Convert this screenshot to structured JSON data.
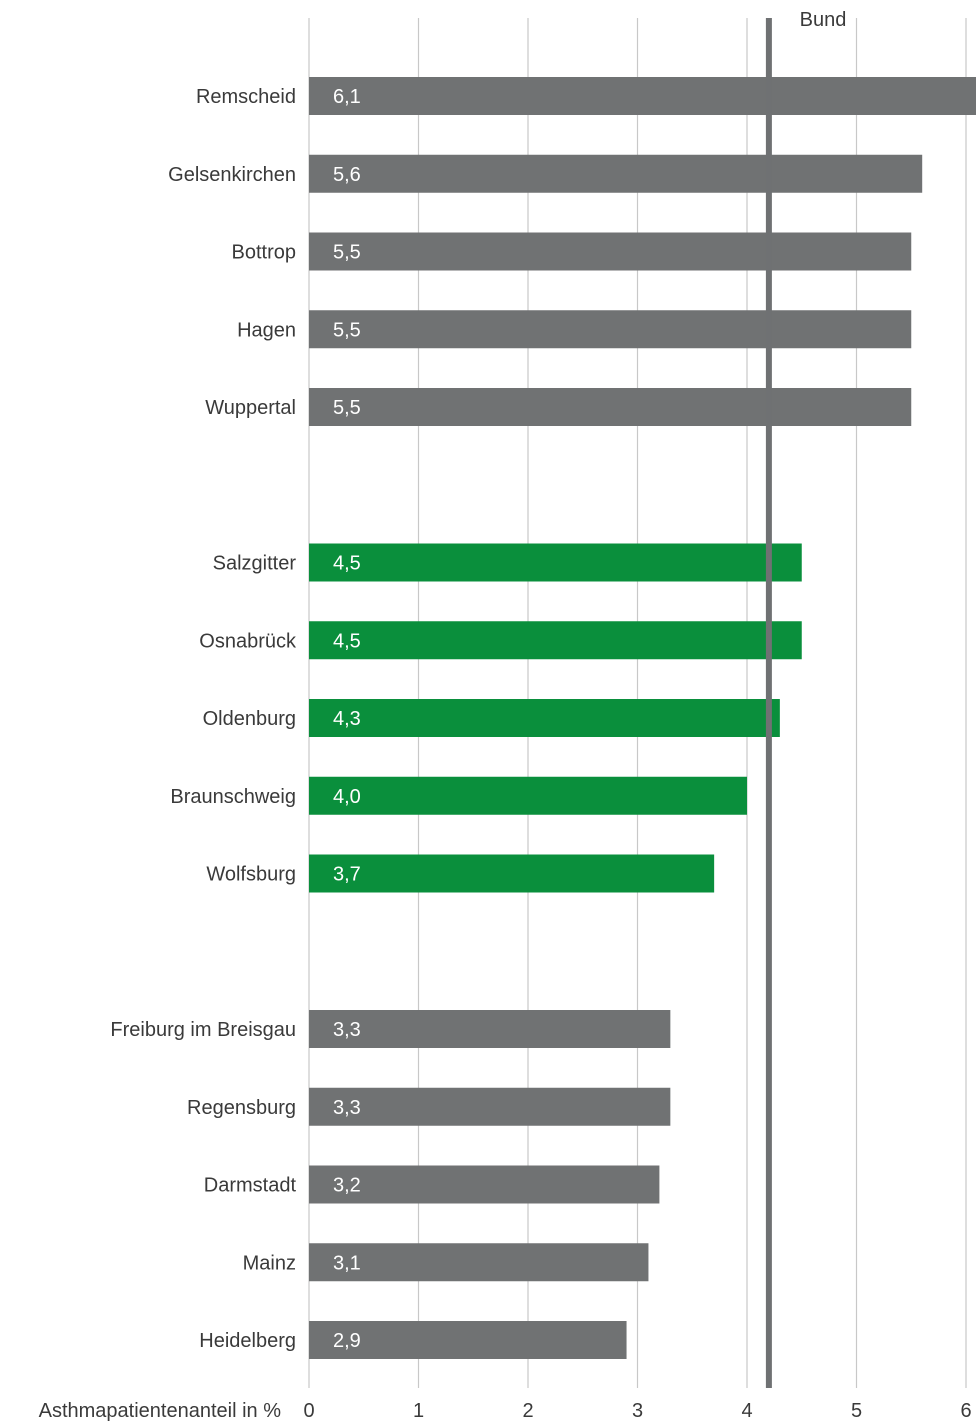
{
  "chart_data": {
    "type": "bar",
    "orientation": "horizontal",
    "xlabel": "Asthmapatientenanteil in %",
    "xlim": [
      0,
      6
    ],
    "xticks": [
      "0",
      "1",
      "2",
      "3",
      "4",
      "5",
      "6"
    ],
    "grid": true,
    "reference_line": {
      "label": "Bund",
      "value": 4.2,
      "color": "#6f7173"
    },
    "groups": [
      {
        "color": "#707273",
        "items": [
          {
            "category": "Remscheid",
            "value": 6.1,
            "label": "6,1"
          },
          {
            "category": "Gelsenkirchen",
            "value": 5.6,
            "label": "5,6"
          },
          {
            "category": "Bottrop",
            "value": 5.5,
            "label": "5,5"
          },
          {
            "category": "Hagen",
            "value": 5.5,
            "label": "5,5"
          },
          {
            "category": "Wuppertal",
            "value": 5.5,
            "label": "5,5"
          }
        ]
      },
      {
        "color": "#0a8f3c",
        "items": [
          {
            "category": "Salzgitter",
            "value": 4.5,
            "label": "4,5"
          },
          {
            "category": "Osnabrück",
            "value": 4.5,
            "label": "4,5"
          },
          {
            "category": "Oldenburg",
            "value": 4.3,
            "label": "4,3"
          },
          {
            "category": "Braunschweig",
            "value": 4.0,
            "label": "4,0"
          },
          {
            "category": "Wolfsburg",
            "value": 3.7,
            "label": "3,7"
          }
        ]
      },
      {
        "color": "#707273",
        "items": [
          {
            "category": "Freiburg im Breisgau",
            "value": 3.3,
            "label": "3,3"
          },
          {
            "category": "Regensburg",
            "value": 3.3,
            "label": "3,3"
          },
          {
            "category": "Darmstadt",
            "value": 3.2,
            "label": "3,2"
          },
          {
            "category": "Mainz",
            "value": 3.1,
            "label": "3,1"
          },
          {
            "category": "Heidelberg",
            "value": 2.9,
            "label": "2,9"
          }
        ]
      }
    ]
  }
}
